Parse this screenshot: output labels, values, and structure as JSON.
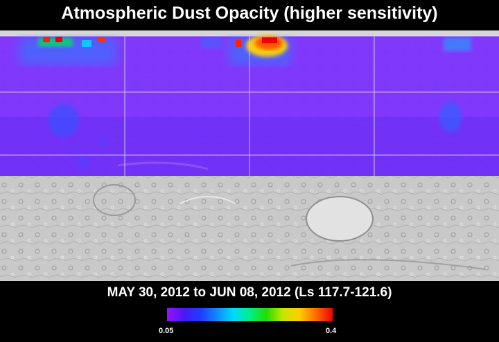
{
  "title": "Atmospheric Dust Opacity (higher sensitivity)",
  "subtitle": "MAY 30, 2012 to JUN 08, 2012 (Ls 117.7-121.6)",
  "colorbar": {
    "min_label": "0.05",
    "max_label": "0.4",
    "colors": [
      "#9a10ff",
      "#4b18f5",
      "#1e3cff",
      "#1188ff",
      "#00d8ff",
      "#00ee88",
      "#22dd00",
      "#c8e600",
      "#ffcc00",
      "#ff6a00",
      "#ee0000"
    ]
  },
  "map": {
    "base_color": "#7a2cff",
    "hotspots": [
      {
        "name": "high-latitude-dust-west",
        "opacity_level": 0.35
      },
      {
        "name": "high-latitude-dust-central",
        "opacity_level": 0.4
      },
      {
        "name": "equatorial-dust-west",
        "opacity_level": 0.12
      },
      {
        "name": "equatorial-dust-east",
        "opacity_level": 0.12
      }
    ]
  }
}
